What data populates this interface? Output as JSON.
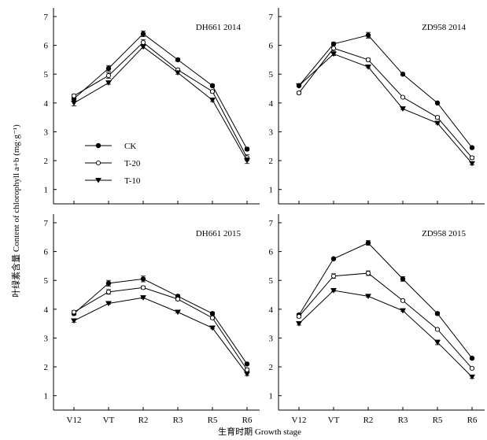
{
  "figure": {
    "xlabel": "生育时期 Growth stage",
    "ylabel": "叶绿素含量 Content of chlorophyll a+b (mg·g⁻¹)"
  },
  "chart_data": [
    {
      "type": "line",
      "title": "DH661 2014",
      "categories": [
        "V12",
        "VT",
        "R2",
        "R3",
        "R5",
        "R6"
      ],
      "ylim": [
        0.5,
        7.3
      ],
      "yticks": [
        1,
        2,
        3,
        4,
        5,
        6,
        7
      ],
      "series": [
        {
          "name": "CK",
          "marker": "filled-circle",
          "values": [
            4.15,
            5.2,
            6.4,
            5.5,
            4.6,
            2.4
          ],
          "errors": [
            0.1,
            0.1,
            0.1,
            0.05,
            0.05,
            0.05
          ]
        },
        {
          "name": "T-20",
          "marker": "open-circle",
          "values": [
            4.25,
            4.95,
            6.1,
            5.15,
            4.4,
            2.1
          ],
          "errors": [
            0.05,
            0.1,
            0.1,
            0.05,
            0.05,
            0.1
          ]
        },
        {
          "name": "T-10",
          "marker": "filled-triangle-down",
          "values": [
            4.0,
            4.7,
            5.95,
            5.05,
            4.1,
            2.0
          ],
          "errors": [
            0.1,
            0.05,
            0.05,
            0.05,
            0.05,
            0.1
          ]
        }
      ]
    },
    {
      "type": "line",
      "title": "ZD958 2014",
      "categories": [
        "V12",
        "VT",
        "R2",
        "R3",
        "R5",
        "R6"
      ],
      "ylim": [
        0.5,
        7.3
      ],
      "yticks": [
        1,
        2,
        3,
        4,
        5,
        6,
        7
      ],
      "series": [
        {
          "name": "CK",
          "marker": "filled-circle",
          "values": [
            4.6,
            6.05,
            6.35,
            5.0,
            4.0,
            2.45
          ],
          "errors": [
            0.03,
            0.05,
            0.1,
            0.03,
            0.03,
            0.03
          ]
        },
        {
          "name": "T-20",
          "marker": "open-circle",
          "values": [
            4.35,
            5.9,
            5.5,
            4.2,
            3.5,
            2.1
          ],
          "errors": [
            0.05,
            0.1,
            0.05,
            0.03,
            0.05,
            0.05
          ]
        },
        {
          "name": "T-10",
          "marker": "filled-triangle-down",
          "values": [
            4.6,
            5.7,
            5.25,
            3.8,
            3.3,
            1.9
          ],
          "errors": [
            0.03,
            0.05,
            0.03,
            0.03,
            0.03,
            0.05
          ]
        }
      ]
    },
    {
      "type": "line",
      "title": "DH661 2015",
      "categories": [
        "V12",
        "VT",
        "R2",
        "R3",
        "R5",
        "R6"
      ],
      "ylim": [
        0.5,
        7.3
      ],
      "yticks": [
        1,
        2,
        3,
        4,
        5,
        6,
        7
      ],
      "series": [
        {
          "name": "CK",
          "marker": "filled-circle",
          "values": [
            3.85,
            4.9,
            5.05,
            4.45,
            3.85,
            2.1
          ],
          "errors": [
            0.05,
            0.1,
            0.1,
            0.05,
            0.05,
            0.03
          ]
        },
        {
          "name": "T-20",
          "marker": "open-circle",
          "values": [
            3.9,
            4.6,
            4.75,
            4.35,
            3.7,
            1.9
          ],
          "errors": [
            0.05,
            0.08,
            0.05,
            0.05,
            0.05,
            0.05
          ]
        },
        {
          "name": "T-10",
          "marker": "filled-triangle-down",
          "values": [
            3.6,
            4.2,
            4.4,
            3.9,
            3.35,
            1.75
          ],
          "errors": [
            0.05,
            0.03,
            0.03,
            0.03,
            0.03,
            0.05
          ]
        }
      ]
    },
    {
      "type": "line",
      "title": "ZD958 2015",
      "categories": [
        "V12",
        "VT",
        "R2",
        "R3",
        "R5",
        "R6"
      ],
      "ylim": [
        0.5,
        7.3
      ],
      "yticks": [
        1,
        2,
        3,
        4,
        5,
        6,
        7
      ],
      "series": [
        {
          "name": "CK",
          "marker": "filled-circle",
          "values": [
            3.8,
            5.75,
            6.3,
            5.05,
            3.85,
            2.3
          ],
          "errors": [
            0.05,
            0.03,
            0.08,
            0.08,
            0.05,
            0.03
          ]
        },
        {
          "name": "T-20",
          "marker": "open-circle",
          "values": [
            3.75,
            5.15,
            5.25,
            4.3,
            3.3,
            1.95
          ],
          "errors": [
            0.05,
            0.08,
            0.08,
            0.03,
            0.03,
            0.03
          ]
        },
        {
          "name": "T-10",
          "marker": "filled-triangle-down",
          "values": [
            3.5,
            4.65,
            4.45,
            3.95,
            2.85,
            1.65
          ],
          "errors": [
            0.05,
            0.03,
            0.03,
            0.03,
            0.08,
            0.05
          ]
        }
      ]
    }
  ],
  "legend": {
    "entries": [
      {
        "label": "CK",
        "marker": "filled-circle"
      },
      {
        "label": "T-20",
        "marker": "open-circle"
      },
      {
        "label": "T-10",
        "marker": "filled-triangle-down"
      }
    ]
  }
}
